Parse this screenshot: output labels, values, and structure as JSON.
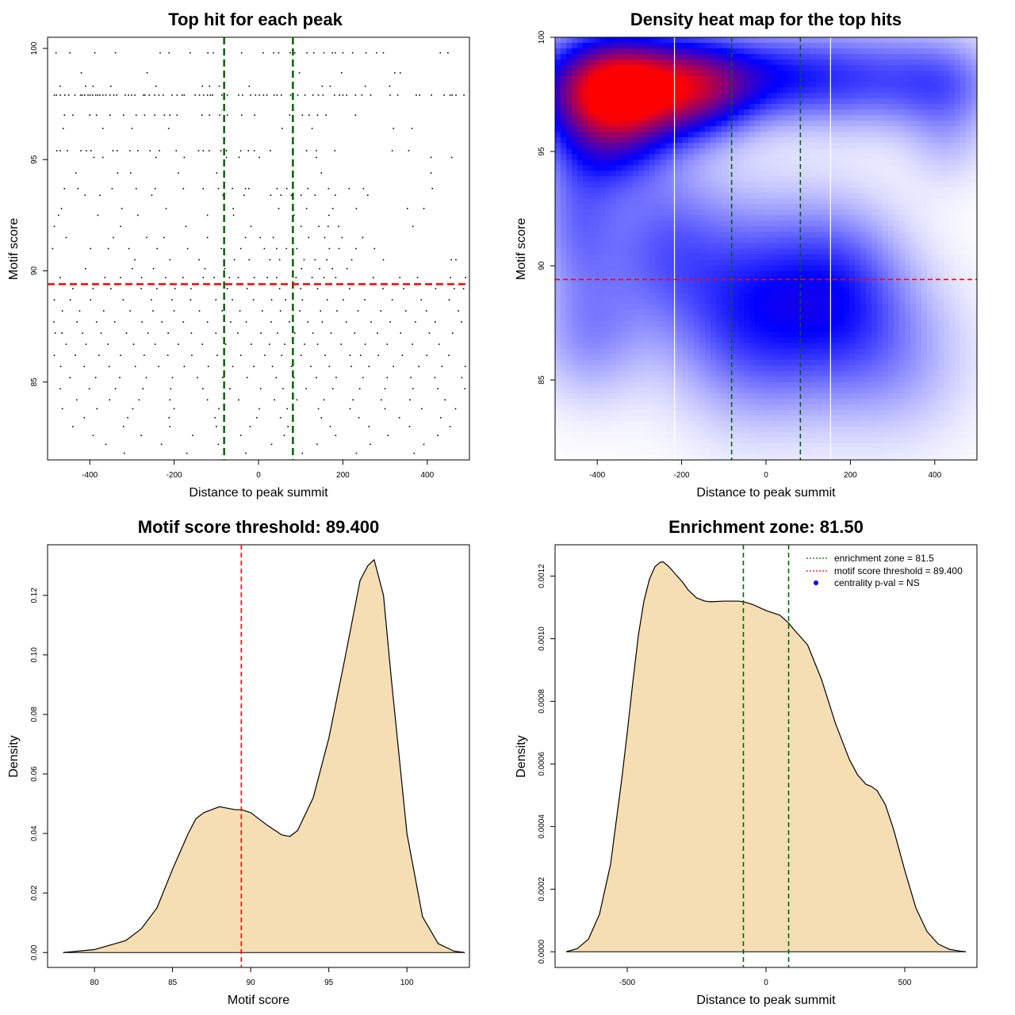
{
  "chart_data": [
    {
      "id": "scatter",
      "type": "scatter",
      "title": "Top hit for each peak",
      "xlabel": "Distance to peak summit",
      "ylabel": "Motif score",
      "xlim": [
        -500,
        500
      ],
      "ylim": [
        81.5,
        100.5
      ],
      "xticks": [
        "-400",
        "-200",
        "0",
        "200",
        "400"
      ],
      "yticks": [
        "85",
        "90",
        "95",
        "100"
      ],
      "vlines": [
        -81.5,
        81.5
      ],
      "hline": 89.4,
      "colors": {
        "points": "#000000",
        "vlines": "#006400",
        "hline": "#ff0000"
      },
      "rows": [
        {
          "y": 97.9,
          "x": [
            -484,
            -479,
            -470,
            -459,
            -450,
            -435,
            -422,
            -418,
            -412,
            -404,
            -399,
            -393,
            -386,
            -381,
            -376,
            -369,
            -362,
            -352,
            -343,
            -336,
            -316,
            -308,
            -301,
            -293,
            -273,
            -269,
            -259,
            -246,
            -236,
            -226,
            -205,
            -193,
            -181,
            -176,
            -150,
            -140,
            -130,
            -121,
            -114,
            -109,
            -87,
            -74,
            -47,
            -38,
            -19,
            -7,
            2,
            12,
            20,
            37,
            44,
            54,
            76,
            93,
            110,
            129,
            142,
            153,
            180,
            192,
            200,
            209,
            230,
            245,
            266,
            312,
            330,
            374,
            382,
            410,
            440,
            454,
            459,
            468,
            487
          ]
        },
        {
          "y": 98.3,
          "x": [
            -470,
            -410,
            -392,
            -350,
            -243,
            -133,
            -116,
            -93,
            -22,
            151,
            170,
            253,
            311
          ]
        },
        {
          "y": 97.0,
          "x": [
            -460,
            -440,
            -400,
            -384,
            -352,
            -320,
            -290,
            -270,
            -246,
            -223,
            -210,
            -193,
            -134,
            -116,
            -92,
            -74,
            -40,
            -9,
            74,
            104,
            120,
            140,
            160,
            230
          ]
        },
        {
          "y": 95.4,
          "x": [
            -478,
            -470,
            -453,
            -421,
            -408,
            -397,
            -345,
            -335,
            -305,
            -286,
            -257,
            -235,
            -195,
            -142,
            -131,
            -117,
            -89,
            -76,
            -42,
            -24,
            -10,
            28,
            114,
            137,
            181,
            317,
            356
          ]
        },
        {
          "y": 99.8,
          "x": [
            -480,
            -447,
            -388,
            -339,
            -233,
            -212,
            -162,
            -120,
            -107,
            -40,
            11,
            36,
            48,
            75,
            86,
            115,
            131,
            155,
            175,
            182,
            200,
            223,
            255,
            280,
            296,
            431,
            449
          ]
        },
        {
          "y": 98.9,
          "x": [
            -420,
            -264,
            97,
            197,
            323,
            336
          ]
        },
        {
          "y": 96.4,
          "x": [
            -463,
            -369,
            -300,
            -213,
            56,
            127,
            320,
            364
          ]
        },
        {
          "y": 95.1,
          "x": [
            -390,
            -369,
            -243,
            -176,
            -76,
            -46,
            2,
            137,
            409,
            458
          ]
        },
        {
          "y": 94.4,
          "x": [
            -433,
            -334,
            -303,
            -190,
            -99,
            149,
            409
          ]
        },
        {
          "y": 93.7,
          "x": [
            -460,
            -428,
            -347,
            -290,
            -245,
            -178,
            -131,
            -95,
            -62,
            -31,
            -23,
            44,
            67,
            117,
            166,
            215,
            249,
            412
          ]
        },
        {
          "y": 93.4,
          "x": [
            -411,
            -376,
            -253,
            -84,
            -34,
            29,
            53,
            78,
            101,
            134,
            182,
            259
          ]
        },
        {
          "y": 92.8,
          "x": [
            -467,
            -324,
            -219,
            -60,
            48,
            114,
            176,
            232,
            353,
            392
          ]
        },
        {
          "y": 92.5,
          "x": [
            -474,
            -381,
            -286,
            -121,
            -59,
            84,
            167
          ]
        },
        {
          "y": 92.0,
          "x": [
            -484,
            -327,
            -172,
            -18,
            101,
            143,
            165,
            190,
            366
          ]
        },
        {
          "y": 91.5,
          "x": [
            -456,
            -344,
            -265,
            -224,
            -121,
            -31,
            4,
            35,
            119,
            157,
            198,
            247
          ]
        },
        {
          "y": 91.0,
          "x": [
            -488,
            -398,
            -356,
            -307,
            -240,
            -168,
            -88,
            -42,
            14,
            43,
            66,
            91,
            168,
            191,
            231,
            275
          ]
        },
        {
          "y": 90.5,
          "x": [
            -293,
            -210,
            -141,
            -57,
            -22,
            27,
            50,
            81,
            108,
            134,
            162,
            221,
            296,
            457,
            468
          ]
        },
        {
          "y": 90.1,
          "x": [
            -410,
            -299,
            -249,
            -127,
            -80,
            102,
            145,
            175,
            210
          ]
        },
        {
          "y": 89.7,
          "x": [
            -470,
            -364,
            -327,
            -277,
            -220,
            -179,
            -131,
            -105,
            -69,
            -48,
            -10,
            21,
            43,
            89,
            127,
            155,
            183,
            272,
            335,
            377,
            455,
            491
          ]
        },
        {
          "y": 89.2,
          "x": [
            -440,
            -392,
            -350,
            -278,
            -241,
            -198,
            -160,
            -74,
            -27,
            50,
            100,
            140,
            216,
            295,
            344,
            420,
            464,
            486
          ]
        },
        {
          "y": 88.7,
          "x": [
            -484,
            -446,
            -398,
            -321,
            -254,
            -205,
            -161,
            -101,
            -62,
            -12,
            31,
            64,
            104,
            163,
            201,
            252,
            317,
            386,
            452
          ]
        },
        {
          "y": 88.2,
          "x": [
            -465,
            -424,
            -367,
            -304,
            -250,
            -200,
            -140,
            -86,
            -44,
            9,
            52,
            98,
            147,
            186,
            236,
            290,
            349,
            398,
            474
          ]
        },
        {
          "y": 87.7,
          "x": [
            -485,
            -430,
            -384,
            -341,
            -276,
            -229,
            -178,
            -121,
            -66,
            -29,
            30,
            73,
            117,
            151,
            208,
            267,
            312,
            372,
            419,
            481
          ]
        },
        {
          "y": 87.2,
          "x": [
            -482,
            -466,
            -417,
            -373,
            -313,
            -262,
            -214,
            -159,
            -101,
            -49,
            6,
            45,
            86,
            129,
            172,
            228,
            282,
            337,
            405,
            460
          ]
        },
        {
          "y": 86.7,
          "x": [
            -456,
            -409,
            -357,
            -296,
            -245,
            -190,
            -133,
            -78,
            -17,
            26,
            62,
            109,
            140,
            196,
            253,
            305,
            365,
            428
          ]
        },
        {
          "y": 86.2,
          "x": [
            -484,
            -434,
            -378,
            -327,
            -271,
            -215,
            -158,
            -98,
            -42,
            15,
            55,
            101,
            158,
            217,
            242,
            284,
            341,
            399,
            451
          ]
        },
        {
          "y": 85.7,
          "x": [
            -469,
            -413,
            -354,
            -292,
            -237,
            -176,
            -119,
            -61,
            -11,
            33,
            78,
            124,
            168,
            220,
            262,
            320,
            380,
            435,
            490
          ]
        },
        {
          "y": 85.2,
          "x": [
            -447,
            -386,
            -329,
            -266,
            -204,
            -145,
            -85,
            -27,
            42,
            84,
            137,
            184,
            248,
            305,
            361,
            418,
            482
          ]
        },
        {
          "y": 84.7,
          "x": [
            -470,
            -401,
            -339,
            -274,
            -208,
            -132,
            -68,
            5,
            58,
            113,
            176,
            240,
            300,
            366,
            425,
            489
          ]
        },
        {
          "y": 84.2,
          "x": [
            -431,
            -353,
            -283,
            -210,
            -121,
            -47,
            38,
            91,
            155,
            224,
            291,
            359,
            442
          ]
        },
        {
          "y": 83.8,
          "x": [
            -465,
            -383,
            -298,
            -200,
            -94,
            2,
            68,
            142,
            217,
            300,
            387,
            467
          ]
        },
        {
          "y": 83.4,
          "x": [
            -413,
            -310,
            -212,
            -103,
            -4,
            52,
            149,
            238,
            334,
            432
          ]
        },
        {
          "y": 83.0,
          "x": [
            -440,
            -320,
            -210,
            -100,
            -20,
            70,
            170,
            262,
            358,
            454
          ]
        },
        {
          "y": 82.6,
          "x": [
            -392,
            -278,
            -156,
            -42,
            61,
            183,
            307,
            425
          ]
        },
        {
          "y": 82.2,
          "x": [
            -362,
            -230,
            -95,
            31,
            139,
            265,
            392
          ]
        },
        {
          "y": 81.8,
          "x": [
            -318,
            -170,
            -30,
            104,
            232,
            369
          ]
        }
      ]
    },
    {
      "id": "heatmap",
      "type": "heatmap",
      "title": "Density heat map for the top hits",
      "xlabel": "Distance to peak summit",
      "ylabel": "Motif score",
      "xlim": [
        -500,
        500
      ],
      "ylim": [
        81.5,
        100
      ],
      "xticks": [
        "-400",
        "-200",
        "0",
        "200",
        "400"
      ],
      "yticks": [
        "85",
        "90",
        "95",
        "100"
      ],
      "vlines": [
        -81.5,
        81.5
      ],
      "whitelines": [
        -217,
        153
      ],
      "hline": 89.4,
      "colors": {
        "low": "#ffffff",
        "mid": "#0000ff",
        "high": "#ff0000",
        "vlines": "#006400",
        "hline": "#ff0000"
      },
      "blobs": [
        {
          "x": -350,
          "y": 97.7,
          "sx": 120,
          "sy": 1.6,
          "w": 2.2
        },
        {
          "x": -150,
          "y": 97.8,
          "sx": 90,
          "sy": 1.4,
          "w": 0.9
        },
        {
          "x": 0,
          "y": 98.3,
          "sx": 120,
          "sy": 1.3,
          "w": 0.55
        },
        {
          "x": 230,
          "y": 98.2,
          "sx": 150,
          "sy": 1.5,
          "w": 0.55
        },
        {
          "x": 430,
          "y": 98.0,
          "sx": 90,
          "sy": 1.4,
          "w": 0.35
        },
        {
          "x": -380,
          "y": 95.0,
          "sx": 90,
          "sy": 1.4,
          "w": 0.45
        },
        {
          "x": -450,
          "y": 92.0,
          "sx": 70,
          "sy": 2.2,
          "w": 0.4
        },
        {
          "x": -250,
          "y": 91.0,
          "sx": 110,
          "sy": 2.5,
          "w": 0.45
        },
        {
          "x": -20,
          "y": 88.0,
          "sx": 140,
          "sy": 3.0,
          "w": 0.75
        },
        {
          "x": 180,
          "y": 89.0,
          "sx": 110,
          "sy": 2.5,
          "w": 0.5
        },
        {
          "x": -420,
          "y": 87.0,
          "sx": 90,
          "sy": 2.0,
          "w": 0.35
        },
        {
          "x": 300,
          "y": 86.0,
          "sx": 130,
          "sy": 2.5,
          "w": 0.3
        },
        {
          "x": 430,
          "y": 95.5,
          "sx": 70,
          "sy": 1.5,
          "w": 0.18
        }
      ]
    },
    {
      "id": "density_score",
      "type": "area",
      "title": "Motif score threshold: 89.400",
      "xlabel": "Motif score",
      "ylabel": "Density",
      "xlim": [
        77,
        104
      ],
      "ylim": [
        -0.005,
        0.137
      ],
      "xticks": [
        "80",
        "85",
        "90",
        "95",
        "100"
      ],
      "yticks": [
        "0.00",
        "0.02",
        "0.04",
        "0.06",
        "0.08",
        "0.10",
        "0.12"
      ],
      "vlines": [
        89.4
      ],
      "colors": {
        "fill": "#f5deb3",
        "line": "#000000",
        "vline": "#ff0000"
      },
      "x": [
        78,
        80,
        82,
        83,
        84,
        85,
        86,
        86.5,
        87,
        88,
        89,
        89.4,
        90,
        91,
        92,
        92.5,
        93,
        94,
        95,
        96,
        97,
        97.5,
        97.9,
        98.5,
        99,
        100,
        101,
        102,
        103,
        103.7
      ],
      "y": [
        0.0,
        0.001,
        0.004,
        0.008,
        0.015,
        0.028,
        0.04,
        0.045,
        0.047,
        0.049,
        0.048,
        0.048,
        0.047,
        0.043,
        0.0395,
        0.039,
        0.041,
        0.052,
        0.072,
        0.098,
        0.125,
        0.13,
        0.132,
        0.12,
        0.092,
        0.04,
        0.012,
        0.003,
        0.0005,
        0.0
      ]
    },
    {
      "id": "density_distance",
      "type": "area",
      "title": "Enrichment zone: 81.50",
      "xlabel": "Distance to peak summit",
      "ylabel": "Density",
      "xlim": [
        -760,
        760
      ],
      "ylim": [
        -5e-05,
        0.0013
      ],
      "xticks": [
        "-500",
        "0",
        "500"
      ],
      "yticks": [
        "0.0000",
        "0.0002",
        "0.0004",
        "0.0006",
        "0.0008",
        "0.0010",
        "0.0012"
      ],
      "vlines": [
        -81.5,
        81.5
      ],
      "colors": {
        "fill": "#f5deb3",
        "line": "#000000",
        "vline": "#006400"
      },
      "x": [
        -720,
        -680,
        -640,
        -600,
        -560,
        -520,
        -500,
        -480,
        -460,
        -440,
        -420,
        -400,
        -380,
        -370,
        -350,
        -320,
        -300,
        -280,
        -250,
        -220,
        -200,
        -150,
        -100,
        -81.5,
        -50,
        0,
        50,
        81.5,
        100,
        150,
        200,
        250,
        300,
        330,
        360,
        380,
        400,
        430,
        460,
        500,
        540,
        580,
        620,
        660,
        700,
        720
      ],
      "y": [
        0.0,
        1e-05,
        4e-05,
        0.00012,
        0.00028,
        0.00055,
        0.0007,
        0.00086,
        0.00101,
        0.00112,
        0.00119,
        0.00123,
        0.001245,
        0.001245,
        0.00123,
        0.0012,
        0.00118,
        0.001155,
        0.00113,
        0.00112,
        0.001118,
        0.00112,
        0.00112,
        0.001118,
        0.00111,
        0.00109,
        0.001075,
        0.00105,
        0.00103,
        0.00098,
        0.00087,
        0.00073,
        0.000615,
        0.000565,
        0.000535,
        0.000528,
        0.000515,
        0.00047,
        0.00039,
        0.00026,
        0.00014,
        6.5e-05,
        2.5e-05,
        8e-06,
        2e-06,
        0.0
      ],
      "legend": [
        {
          "label": "enrichment zone = 81.5",
          "symbol": "dotted",
          "color": "#006400"
        },
        {
          "label": "motif score threshold = 89.400",
          "symbol": "dotted",
          "color": "#ff0000"
        },
        {
          "label": "centrality p-val = NS",
          "symbol": "dot",
          "color": "#0000ff"
        }
      ],
      "legend_position": "top-right"
    }
  ]
}
